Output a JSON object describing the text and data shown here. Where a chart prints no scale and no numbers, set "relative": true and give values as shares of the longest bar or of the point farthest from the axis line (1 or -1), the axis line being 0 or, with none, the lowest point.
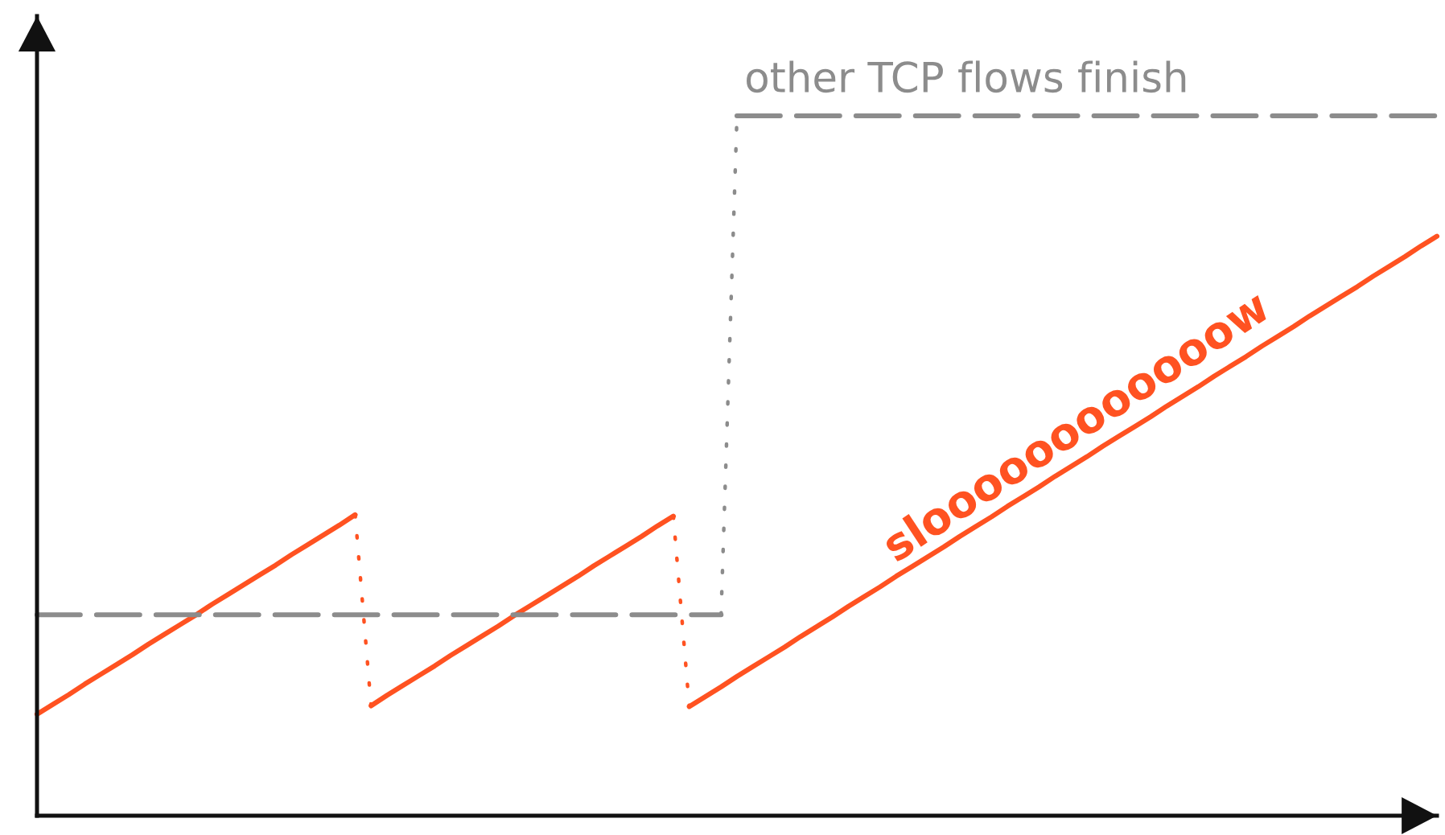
{
  "chart_data": {
    "type": "line",
    "relative": true,
    "tick_labels": false,
    "categories": [
      null,
      null,
      null,
      null,
      null,
      null,
      null,
      null,
      null,
      null,
      null,
      null,
      null,
      null,
      null,
      null,
      null,
      null,
      null,
      null,
      null,
      null,
      null,
      null,
      null,
      null,
      null,
      null,
      null,
      null,
      null,
      null,
      null,
      null,
      null,
      null,
      null,
      null,
      null,
      null,
      null,
      null,
      null,
      null,
      null,
      null,
      null,
      null,
      null,
      null,
      null,
      null,
      null,
      null,
      null,
      null,
      null,
      null,
      null,
      null,
      null,
      null,
      null,
      null,
      null,
      null,
      null,
      null,
      null,
      null,
      null,
      null,
      null,
      null,
      null,
      null,
      null,
      null,
      null,
      null,
      null,
      null,
      null,
      null,
      null,
      null,
      null,
      null,
      null
    ],
    "series": [
      {
        "color": "#ff5221",
        "line_style": "solid",
        "values": [
          0.145,
          0.159,
          0.173,
          0.188,
          0.202,
          0.216,
          0.23,
          0.245,
          0.259,
          0.273,
          0.287,
          0.302,
          0.316,
          0.33,
          0.344,
          0.358,
          0.373,
          0.387,
          0.401,
          0.415,
          0.43,
          null,
          null,
          null,
          null,
          null,
          null,
          null,
          null,
          null,
          null,
          null,
          null,
          null,
          null,
          null,
          null,
          null,
          null,
          null,
          null,
          null,
          null,
          null,
          null,
          null,
          null,
          null,
          null,
          null,
          null,
          null,
          null,
          null,
          null,
          null,
          null,
          null,
          null,
          null,
          null,
          null,
          null,
          null,
          null,
          null,
          null,
          null,
          null,
          null,
          null,
          null,
          null,
          null,
          null,
          null,
          null,
          null,
          null,
          null,
          null,
          null,
          null,
          null,
          null,
          null,
          null,
          null,
          null
        ]
      },
      {
        "color": "#ff5221",
        "line_style": "solid",
        "values": [
          null,
          null,
          null,
          null,
          null,
          null,
          null,
          null,
          null,
          null,
          null,
          null,
          null,
          null,
          null,
          null,
          null,
          null,
          null,
          null,
          null,
          0.157,
          0.172,
          0.186,
          0.2,
          0.214,
          0.229,
          0.243,
          0.257,
          0.271,
          0.286,
          0.3,
          0.314,
          0.328,
          0.342,
          0.357,
          0.371,
          0.385,
          0.399,
          0.414,
          0.428,
          null,
          null,
          null,
          null,
          null,
          null,
          null,
          null,
          null,
          null,
          null,
          null,
          null,
          null,
          null,
          null,
          null,
          null,
          null,
          null,
          null,
          null,
          null,
          null,
          null,
          null,
          null,
          null,
          null,
          null,
          null,
          null,
          null,
          null,
          null,
          null,
          null,
          null,
          null,
          null,
          null,
          null,
          null,
          null,
          null,
          null,
          null,
          null
        ]
      },
      {
        "color": "#ff5221",
        "line_style": "solid",
        "values": [
          null,
          null,
          null,
          null,
          null,
          null,
          null,
          null,
          null,
          null,
          null,
          null,
          null,
          null,
          null,
          null,
          null,
          null,
          null,
          null,
          null,
          null,
          null,
          null,
          null,
          null,
          null,
          null,
          null,
          null,
          null,
          null,
          null,
          null,
          null,
          null,
          null,
          null,
          null,
          null,
          null,
          0.156,
          0.17,
          0.184,
          0.199,
          0.213,
          0.227,
          0.241,
          0.256,
          0.27,
          0.284,
          0.299,
          0.313,
          0.327,
          0.342,
          0.356,
          0.37,
          0.384,
          0.399,
          0.413,
          0.427,
          0.442,
          0.456,
          0.47,
          0.485,
          0.499,
          0.513,
          0.528,
          0.542,
          0.556,
          0.57,
          0.585,
          0.599,
          0.613,
          0.628,
          0.642,
          0.656,
          0.671,
          0.685,
          0.699,
          0.714,
          0.728,
          0.742,
          0.756,
          0.771,
          0.785,
          0.799,
          0.814,
          0.828
        ]
      },
      {
        "color": "#ff5221",
        "line_style": "dotted",
        "values": [
          null,
          null,
          null,
          null,
          null,
          null,
          null,
          null,
          null,
          null,
          null,
          null,
          null,
          null,
          null,
          null,
          null,
          null,
          null,
          null,
          0.43,
          0.157,
          null,
          null,
          null,
          null,
          null,
          null,
          null,
          null,
          null,
          null,
          null,
          null,
          null,
          null,
          null,
          null,
          null,
          null,
          0.428,
          0.156,
          null,
          null,
          null,
          null,
          null,
          null,
          null,
          null,
          null,
          null,
          null,
          null,
          null,
          null,
          null,
          null,
          null,
          null,
          null,
          null,
          null,
          null,
          null,
          null,
          null,
          null,
          null,
          null,
          null,
          null,
          null,
          null,
          null,
          null,
          null,
          null,
          null,
          null,
          null,
          null,
          null,
          null,
          null,
          null,
          null,
          null,
          null
        ]
      },
      {
        "color": "#8c8c8c",
        "line_style": "dashed",
        "values": [
          0.287,
          0.287,
          0.287,
          0.287,
          0.287,
          0.287,
          0.287,
          0.287,
          0.287,
          0.287,
          0.287,
          0.287,
          0.287,
          0.287,
          0.287,
          0.287,
          0.287,
          0.287,
          0.287,
          0.287,
          0.287,
          0.287,
          0.287,
          0.287,
          0.287,
          0.287,
          0.287,
          0.287,
          0.287,
          0.287,
          0.287,
          0.287,
          0.287,
          0.287,
          0.287,
          0.287,
          0.287,
          0.287,
          0.287,
          0.287,
          0.287,
          0.287,
          0.287,
          0.287,
          null,
          null,
          null,
          null,
          null,
          null,
          null,
          null,
          null,
          null,
          null,
          null,
          null,
          null,
          null,
          null,
          null,
          null,
          null,
          null,
          null,
          null,
          null,
          null,
          null,
          null,
          null,
          null,
          null,
          null,
          null,
          null,
          null,
          null,
          null,
          null,
          null,
          null,
          null,
          null,
          null,
          null,
          null,
          null,
          null
        ]
      },
      {
        "color": "#8c8c8c",
        "line_style": "dotted",
        "values": [
          null,
          null,
          null,
          null,
          null,
          null,
          null,
          null,
          null,
          null,
          null,
          null,
          null,
          null,
          null,
          null,
          null,
          null,
          null,
          null,
          null,
          null,
          null,
          null,
          null,
          null,
          null,
          null,
          null,
          null,
          null,
          null,
          null,
          null,
          null,
          null,
          null,
          null,
          null,
          null,
          null,
          null,
          null,
          0.287,
          1,
          null,
          null,
          null,
          null,
          null,
          null,
          null,
          null,
          null,
          null,
          null,
          null,
          null,
          null,
          null,
          null,
          null,
          null,
          null,
          null,
          null,
          null,
          null,
          null,
          null,
          null,
          null,
          null,
          null,
          null,
          null,
          null,
          null,
          null,
          null,
          null,
          null,
          null,
          null,
          null,
          null,
          null,
          null,
          null
        ]
      },
      {
        "color": "#8c8c8c",
        "line_style": "dashed",
        "values": [
          null,
          null,
          null,
          null,
          null,
          null,
          null,
          null,
          null,
          null,
          null,
          null,
          null,
          null,
          null,
          null,
          null,
          null,
          null,
          null,
          null,
          null,
          null,
          null,
          null,
          null,
          null,
          null,
          null,
          null,
          null,
          null,
          null,
          null,
          null,
          null,
          null,
          null,
          null,
          null,
          null,
          null,
          null,
          null,
          1,
          1,
          1,
          1,
          1,
          1,
          1,
          1,
          1,
          1,
          1,
          1,
          1,
          1,
          1,
          1,
          1,
          1,
          1,
          1,
          1,
          1,
          1,
          1,
          1,
          1,
          1,
          1,
          1,
          1,
          1,
          1,
          1,
          1,
          1,
          1,
          1,
          1,
          1,
          1,
          1,
          1,
          1,
          1,
          1
        ]
      }
    ],
    "annotations": [
      "other TCP flows finish",
      "sloooooooooooow"
    ]
  }
}
